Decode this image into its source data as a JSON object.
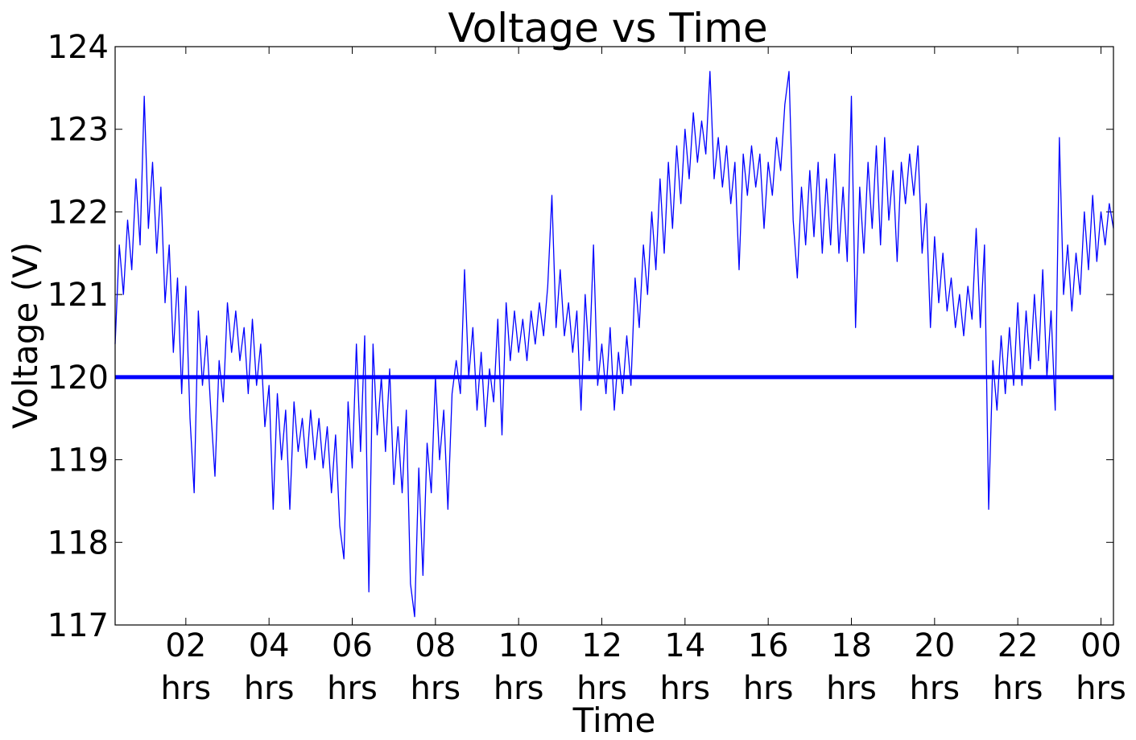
{
  "chart_data": {
    "type": "line",
    "title": "Voltage vs Time",
    "xlabel": "Time",
    "ylabel": "Voltage (V)",
    "color": "#0000ff",
    "hline": 120,
    "hline_color": "#0000ff",
    "xlim": [
      0.3,
      24.3
    ],
    "ylim": [
      117,
      124
    ],
    "yticks": [
      117,
      118,
      119,
      120,
      121,
      122,
      123,
      124
    ],
    "xticks": [
      {
        "value": 2,
        "label": "02\nhrs"
      },
      {
        "value": 4,
        "label": "04\nhrs"
      },
      {
        "value": 6,
        "label": "06\nhrs"
      },
      {
        "value": 8,
        "label": "08\nhrs"
      },
      {
        "value": 10,
        "label": "10\nhrs"
      },
      {
        "value": 12,
        "label": "12\nhrs"
      },
      {
        "value": 14,
        "label": "14\nhrs"
      },
      {
        "value": 16,
        "label": "16\nhrs"
      },
      {
        "value": 18,
        "label": "18\nhrs"
      },
      {
        "value": 20,
        "label": "20\nhrs"
      },
      {
        "value": 22,
        "label": "22\nhrs"
      },
      {
        "value": 24,
        "label": "00\nhrs"
      }
    ],
    "x": [
      0.3,
      0.4,
      0.5,
      0.6,
      0.7,
      0.8,
      0.9,
      1.0,
      1.1,
      1.2,
      1.3,
      1.4,
      1.5,
      1.6,
      1.7,
      1.8,
      1.9,
      2.0,
      2.1,
      2.2,
      2.3,
      2.4,
      2.5,
      2.6,
      2.7,
      2.8,
      2.9,
      3.0,
      3.1,
      3.2,
      3.3,
      3.4,
      3.5,
      3.6,
      3.7,
      3.8,
      3.9,
      4.0,
      4.1,
      4.2,
      4.3,
      4.4,
      4.5,
      4.6,
      4.7,
      4.8,
      4.9,
      5.0,
      5.1,
      5.2,
      5.3,
      5.4,
      5.5,
      5.6,
      5.7,
      5.8,
      5.9,
      6.0,
      6.1,
      6.2,
      6.3,
      6.4,
      6.5,
      6.6,
      6.7,
      6.8,
      6.9,
      7.0,
      7.1,
      7.2,
      7.3,
      7.4,
      7.5,
      7.6,
      7.7,
      7.8,
      7.9,
      8.0,
      8.1,
      8.2,
      8.3,
      8.4,
      8.5,
      8.6,
      8.7,
      8.8,
      8.9,
      9.0,
      9.1,
      9.2,
      9.3,
      9.4,
      9.5,
      9.6,
      9.7,
      9.8,
      9.9,
      10.0,
      10.1,
      10.2,
      10.3,
      10.4,
      10.5,
      10.6,
      10.7,
      10.8,
      10.9,
      11.0,
      11.1,
      11.2,
      11.3,
      11.4,
      11.5,
      11.6,
      11.7,
      11.8,
      11.9,
      12.0,
      12.1,
      12.2,
      12.3,
      12.4,
      12.5,
      12.6,
      12.7,
      12.8,
      12.9,
      13.0,
      13.1,
      13.2,
      13.3,
      13.4,
      13.5,
      13.6,
      13.7,
      13.8,
      13.9,
      14.0,
      14.1,
      14.2,
      14.3,
      14.4,
      14.5,
      14.6,
      14.7,
      14.8,
      14.9,
      15.0,
      15.1,
      15.2,
      15.3,
      15.4,
      15.5,
      15.6,
      15.7,
      15.8,
      15.9,
      16.0,
      16.1,
      16.2,
      16.3,
      16.4,
      16.5,
      16.6,
      16.7,
      16.8,
      16.9,
      17.0,
      17.1,
      17.2,
      17.3,
      17.4,
      17.5,
      17.6,
      17.7,
      17.8,
      17.9,
      18.0,
      18.1,
      18.2,
      18.3,
      18.4,
      18.5,
      18.6,
      18.7,
      18.8,
      18.9,
      19.0,
      19.1,
      19.2,
      19.3,
      19.4,
      19.5,
      19.6,
      19.7,
      19.8,
      19.9,
      20.0,
      20.1,
      20.2,
      20.3,
      20.4,
      20.5,
      20.6,
      20.7,
      20.8,
      20.9,
      21.0,
      21.1,
      21.2,
      21.3,
      21.4,
      21.5,
      21.6,
      21.7,
      21.8,
      21.9,
      22.0,
      22.1,
      22.2,
      22.3,
      22.4,
      22.5,
      22.6,
      22.7,
      22.8,
      22.9,
      23.0,
      23.1,
      23.2,
      23.3,
      23.4,
      23.5,
      23.6,
      23.7,
      23.8,
      23.9,
      24.0,
      24.1,
      24.2,
      24.3
    ],
    "values": [
      120.4,
      121.6,
      121.0,
      121.9,
      121.3,
      122.4,
      121.6,
      123.4,
      121.8,
      122.6,
      121.5,
      122.3,
      120.9,
      121.6,
      120.3,
      121.2,
      119.8,
      121.1,
      119.5,
      118.6,
      120.8,
      119.9,
      120.5,
      119.6,
      118.8,
      120.2,
      119.7,
      120.9,
      120.3,
      120.8,
      120.2,
      120.6,
      119.8,
      120.7,
      119.9,
      120.4,
      119.4,
      119.9,
      118.4,
      119.8,
      119.0,
      119.6,
      118.4,
      119.7,
      119.1,
      119.5,
      118.9,
      119.6,
      119.0,
      119.5,
      118.9,
      119.4,
      118.6,
      119.3,
      118.2,
      117.8,
      119.7,
      118.9,
      120.4,
      119.1,
      120.5,
      117.4,
      120.4,
      119.3,
      120.0,
      119.1,
      120.1,
      118.7,
      119.4,
      118.6,
      119.6,
      117.5,
      117.1,
      118.9,
      117.6,
      119.2,
      118.6,
      120.0,
      119.0,
      119.6,
      118.4,
      119.8,
      120.2,
      119.8,
      121.3,
      120.0,
      120.6,
      119.6,
      120.3,
      119.4,
      120.1,
      119.7,
      120.7,
      119.3,
      120.9,
      120.2,
      120.8,
      120.3,
      120.7,
      120.2,
      120.8,
      120.4,
      120.9,
      120.5,
      121.1,
      122.2,
      120.6,
      121.3,
      120.5,
      120.9,
      120.3,
      120.8,
      119.6,
      121.0,
      120.2,
      121.6,
      119.9,
      120.4,
      119.8,
      120.6,
      119.6,
      120.3,
      119.8,
      120.5,
      119.9,
      121.2,
      120.6,
      121.6,
      121.0,
      122.0,
      121.3,
      122.4,
      121.5,
      122.6,
      121.8,
      122.8,
      122.1,
      123.0,
      122.4,
      123.2,
      122.6,
      123.1,
      122.7,
      123.7,
      122.4,
      122.9,
      122.3,
      122.8,
      122.1,
      122.6,
      121.3,
      122.7,
      122.2,
      122.8,
      122.3,
      122.7,
      121.8,
      122.6,
      122.2,
      122.9,
      122.5,
      123.3,
      123.7,
      121.9,
      121.2,
      122.3,
      121.6,
      122.5,
      121.7,
      122.6,
      121.5,
      122.4,
      121.6,
      122.7,
      121.5,
      122.3,
      121.4,
      123.4,
      120.6,
      122.3,
      121.5,
      122.6,
      121.8,
      122.8,
      121.6,
      122.9,
      121.9,
      122.5,
      121.4,
      122.6,
      122.1,
      122.7,
      122.2,
      122.8,
      121.5,
      122.1,
      120.6,
      121.7,
      120.9,
      121.5,
      120.8,
      121.2,
      120.6,
      121.0,
      120.5,
      121.1,
      120.7,
      121.8,
      120.6,
      121.6,
      118.4,
      120.2,
      119.6,
      120.5,
      119.8,
      120.6,
      119.9,
      120.9,
      119.9,
      120.8,
      120.1,
      121.0,
      120.2,
      121.3,
      120.0,
      120.8,
      119.6,
      122.9,
      121.0,
      121.6,
      120.8,
      121.5,
      121.0,
      122.0,
      121.3,
      122.2,
      121.4,
      122.0,
      121.6,
      122.1,
      121.8
    ]
  }
}
